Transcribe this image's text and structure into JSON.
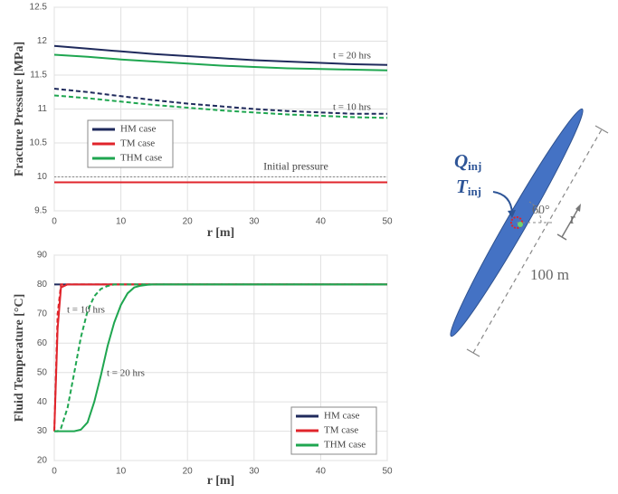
{
  "chart_data": [
    {
      "type": "line",
      "y_label": "Fracture Pressure [MPa]",
      "x_label": "r [m]",
      "x": [
        0,
        5,
        10,
        15,
        20,
        25,
        30,
        35,
        40,
        45,
        50
      ],
      "xlim": [
        0,
        50
      ],
      "xticks": [
        0,
        10,
        20,
        30,
        40,
        50
      ],
      "ylim": [
        9.5,
        12.5
      ],
      "yticks": [
        9.5,
        10,
        10.5,
        11,
        11.5,
        12,
        12.5
      ],
      "grid": true,
      "legend": "center left",
      "reference": {
        "label": "Initial pressure",
        "value": 10,
        "color": "#888888"
      },
      "annotations": [
        "t = 20 hrs",
        "t = 10 hrs"
      ],
      "series": [
        {
          "name": "HM case",
          "color": "#1f2a5c",
          "dash": false,
          "values": [
            11.93,
            11.89,
            11.85,
            11.81,
            11.78,
            11.75,
            11.72,
            11.7,
            11.68,
            11.66,
            11.65
          ]
        },
        {
          "name": "TM case",
          "color": "#e0242b",
          "dash": false,
          "values": [
            9.92,
            9.92,
            9.92,
            9.92,
            9.92,
            9.92,
            9.92,
            9.92,
            9.92,
            9.92,
            9.92
          ]
        },
        {
          "name": "THM case",
          "color": "#1fa650",
          "dash": false,
          "values": [
            11.8,
            11.77,
            11.73,
            11.7,
            11.67,
            11.64,
            11.62,
            11.6,
            11.59,
            11.58,
            11.57
          ]
        },
        {
          "name": "HM case",
          "color": "#1f2a5c",
          "dash": true,
          "values": [
            11.3,
            11.25,
            11.19,
            11.13,
            11.08,
            11.04,
            11.0,
            10.97,
            10.95,
            10.93,
            10.93
          ]
        },
        {
          "name": "THM case",
          "color": "#1fa650",
          "dash": true,
          "values": [
            11.2,
            11.16,
            11.11,
            11.06,
            11.02,
            10.98,
            10.95,
            10.92,
            10.9,
            10.88,
            10.87
          ]
        }
      ]
    },
    {
      "type": "line",
      "y_label": "Fluid Temperature [°C]",
      "x_label": "r [m]",
      "x": [
        0,
        0.5,
        1,
        2,
        3,
        4,
        5,
        6,
        7,
        8,
        9,
        10,
        11,
        12,
        13,
        14,
        15,
        16,
        18,
        20,
        25,
        30,
        35,
        40,
        45,
        50
      ],
      "xlim": [
        0,
        50
      ],
      "xticks": [
        0,
        10,
        20,
        30,
        40,
        50
      ],
      "ylim": [
        20,
        90
      ],
      "yticks": [
        20,
        30,
        40,
        50,
        60,
        70,
        80,
        90
      ],
      "grid": true,
      "legend": "lower right",
      "annotations": [
        "t = 10 hrs",
        "t = 20 hrs"
      ],
      "series": [
        {
          "name": "HM case",
          "color": "#1f2a5c",
          "dash": false,
          "values": [
            80,
            80,
            80,
            80,
            80,
            80,
            80,
            80,
            80,
            80,
            80,
            80,
            80,
            80,
            80,
            80,
            80,
            80,
            80,
            80,
            80,
            80,
            80,
            80,
            80,
            80
          ]
        },
        {
          "name": "TM case",
          "color": "#e0242b",
          "dash": true,
          "values": [
            30,
            70,
            80,
            80,
            80,
            80,
            80,
            80,
            80,
            80,
            80,
            80,
            80,
            80,
            80,
            80,
            80,
            80,
            80,
            80,
            80,
            80,
            80,
            80,
            80,
            80
          ]
        },
        {
          "name": "TM case",
          "color": "#e0242b",
          "dash": false,
          "values": [
            30,
            65,
            79,
            80,
            80,
            80,
            80,
            80,
            80,
            80,
            80,
            80,
            80,
            80,
            80,
            80,
            80,
            80,
            80,
            80,
            80,
            80,
            80,
            80,
            80,
            80
          ]
        },
        {
          "name": "THM case",
          "color": "#1fa650",
          "dash": true,
          "values": [
            30,
            30,
            31,
            38,
            50,
            62,
            71,
            76,
            78.5,
            79.5,
            80,
            80,
            80,
            80,
            80,
            80,
            80,
            80,
            80,
            80,
            80,
            80,
            80,
            80,
            80,
            80
          ]
        },
        {
          "name": "THM case",
          "color": "#1fa650",
          "dash": false,
          "values": [
            30,
            30,
            30,
            30,
            30,
            30.5,
            33,
            40,
            49,
            59,
            67,
            73,
            77,
            79,
            79.6,
            79.9,
            80,
            80,
            80,
            80,
            80,
            80,
            80,
            80,
            80,
            80
          ]
        }
      ]
    }
  ],
  "diagram": {
    "rate": {
      "symbol": "Q",
      "subscript": "inj"
    },
    "temperature": {
      "symbol": "T",
      "subscript": "inj"
    },
    "angle": "60°",
    "distance": "r",
    "length": "100 m"
  }
}
